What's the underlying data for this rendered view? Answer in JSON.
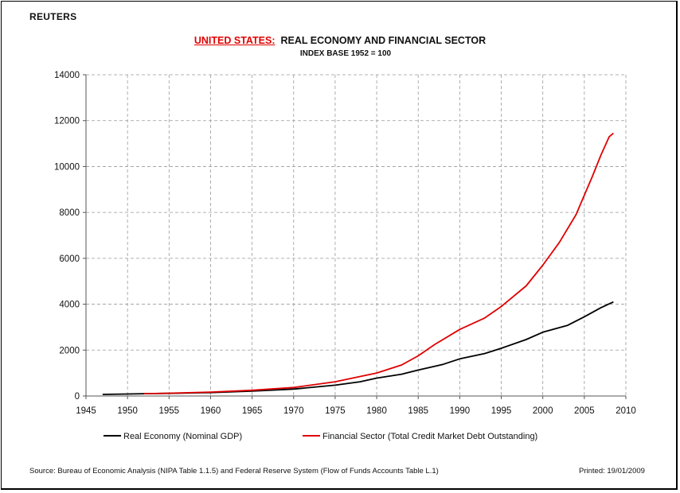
{
  "header": {
    "brand": "REUTERS"
  },
  "footer": {
    "source": "Source:  Bureau of Economic Analysis (NIPA Table 1.1.5) and Federal Reserve System (Flow of Funds Accounts Table L.1)",
    "printed": "Printed:  19/01/2009"
  },
  "chart_data": {
    "type": "line",
    "title_prefix": "UNITED STATES:",
    "title": "REAL ECONOMY AND FINANCIAL SECTOR",
    "subtitle": "INDEX BASE 1952 = 100",
    "xlabel": "",
    "ylabel": "",
    "xlim": [
      1945,
      2010
    ],
    "ylim": [
      0,
      14000
    ],
    "xticks": [
      1945,
      1950,
      1955,
      1960,
      1965,
      1970,
      1975,
      1980,
      1985,
      1990,
      1995,
      2000,
      2005,
      2010
    ],
    "yticks": [
      0,
      2000,
      4000,
      6000,
      8000,
      10000,
      12000,
      14000
    ],
    "grid": true,
    "legend_position": "bottom",
    "series": [
      {
        "name": "Real Economy (Nominal GDP)",
        "color": "#000000",
        "x": [
          1947,
          1950,
          1952,
          1955,
          1960,
          1965,
          1970,
          1975,
          1978,
          1980,
          1983,
          1985,
          1988,
          1990,
          1993,
          1995,
          1998,
          2000,
          2003,
          2005,
          2007,
          2008.5
        ],
        "y": [
          70,
          85,
          100,
          115,
          150,
          210,
          300,
          470,
          620,
          780,
          950,
          1130,
          1380,
          1620,
          1850,
          2080,
          2460,
          2780,
          3080,
          3450,
          3850,
          4100
        ]
      },
      {
        "name": "Financial Sector (Total Credit Market Debt Outstanding)",
        "color": "#e00000",
        "x": [
          1952,
          1955,
          1960,
          1965,
          1970,
          1975,
          1978,
          1980,
          1983,
          1985,
          1987,
          1990,
          1993,
          1995,
          1998,
          2000,
          2002,
          2004,
          2006,
          2007,
          2008,
          2008.5
        ],
        "y": [
          100,
          120,
          170,
          250,
          370,
          620,
          850,
          1000,
          1350,
          1750,
          2250,
          2900,
          3400,
          3900,
          4800,
          5700,
          6700,
          7900,
          9600,
          10500,
          11300,
          11450
        ]
      }
    ]
  }
}
